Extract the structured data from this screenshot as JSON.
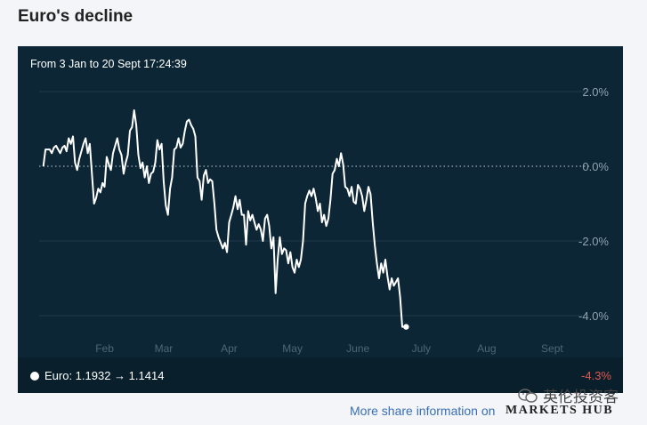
{
  "title": "Euro's decline",
  "subtitle": "From 3 Jan to 20 Sept 17:24:39",
  "legend_text": "Euro: 1.1932 → 1.1414",
  "change_text": "-4.3%",
  "share_text": "More share information on",
  "brand_text": "MARKETS HUB",
  "watermark_text": "英伦投资客",
  "colors": {
    "background": "#f3f5f8",
    "panel": "#0c2636",
    "line": "#ffffff",
    "negative": "#e0574f",
    "link": "#3a6fb3"
  },
  "chart_data": {
    "type": "line",
    "title": "Euro's decline",
    "subtitle": "From 3 Jan to 20 Sept 17:24:39",
    "xlabel": "",
    "ylabel": "",
    "ylim": [
      -5,
      2.5
    ],
    "yticks": [
      2.0,
      0.0,
      -2.0,
      -4.0
    ],
    "ytick_labels": [
      "2.0%",
      "0.0%",
      "-2.0%",
      "-4.0%"
    ],
    "reference_line": 0.0,
    "month_ticks": [
      {
        "label": "Feb",
        "day": 31
      },
      {
        "label": "Mar",
        "day": 59
      },
      {
        "label": "Apr",
        "day": 90
      },
      {
        "label": "May",
        "day": 120
      },
      {
        "label": "June",
        "day": 151
      },
      {
        "label": "July",
        "day": 181
      },
      {
        "label": "Aug",
        "day": 212
      },
      {
        "label": "Sept",
        "day": 243
      }
    ],
    "x_start_label": "3 Jan",
    "x_end_label": "20 Sept",
    "series": [
      {
        "name": "Euro",
        "points": [
          [
            2,
            0.0
          ],
          [
            3,
            0.45
          ],
          [
            5,
            0.45
          ],
          [
            6,
            0.35
          ],
          [
            7,
            0.5
          ],
          [
            8,
            0.55
          ],
          [
            9,
            0.45
          ],
          [
            10,
            0.35
          ],
          [
            11,
            0.5
          ],
          [
            12,
            0.55
          ],
          [
            13,
            0.4
          ],
          [
            14,
            0.75
          ],
          [
            15,
            0.6
          ],
          [
            16,
            0.8
          ],
          [
            17,
            0.1
          ],
          [
            18,
            -0.1
          ],
          [
            19,
            0.2
          ],
          [
            21,
            0.6
          ],
          [
            22,
            0.75
          ],
          [
            23,
            0.35
          ],
          [
            24,
            0.6
          ],
          [
            25,
            -0.2
          ],
          [
            26,
            -1.0
          ],
          [
            27,
            -0.85
          ],
          [
            28,
            -0.6
          ],
          [
            29,
            -0.7
          ],
          [
            30,
            -0.45
          ],
          [
            31,
            -0.55
          ],
          [
            32,
            0.25
          ],
          [
            33,
            0.05
          ],
          [
            34,
            -0.1
          ],
          [
            35,
            0.35
          ],
          [
            36,
            0.55
          ],
          [
            37,
            0.75
          ],
          [
            38,
            0.45
          ],
          [
            39,
            0.3
          ],
          [
            40,
            -0.2
          ],
          [
            41,
            0.1
          ],
          [
            42,
            0.3
          ],
          [
            43,
            0.95
          ],
          [
            44,
            1.05
          ],
          [
            45,
            1.5
          ],
          [
            46,
            1.1
          ],
          [
            47,
            0.3
          ],
          [
            48,
            -0.05
          ],
          [
            49,
            0.1
          ],
          [
            50,
            -0.3
          ],
          [
            51,
            0.0
          ],
          [
            52,
            -0.45
          ],
          [
            53,
            -0.2
          ],
          [
            54,
            -0.15
          ],
          [
            55,
            0.1
          ],
          [
            56,
            0.7
          ],
          [
            57,
            0.45
          ],
          [
            58,
            0.6
          ],
          [
            59,
            -0.4
          ],
          [
            60,
            -1.05
          ],
          [
            61,
            -1.3
          ],
          [
            62,
            -0.6
          ],
          [
            63,
            -0.3
          ],
          [
            64,
            0.45
          ],
          [
            65,
            0.5
          ],
          [
            66,
            0.75
          ],
          [
            67,
            0.5
          ],
          [
            68,
            0.6
          ],
          [
            69,
            0.95
          ],
          [
            70,
            1.2
          ],
          [
            71,
            1.25
          ],
          [
            72,
            1.1
          ],
          [
            73,
            1.0
          ],
          [
            74,
            0.8
          ],
          [
            75,
            -0.3
          ],
          [
            76,
            -0.4
          ],
          [
            77,
            -0.9
          ],
          [
            78,
            -0.25
          ],
          [
            79,
            -0.1
          ],
          [
            80,
            -0.45
          ],
          [
            81,
            -0.35
          ],
          [
            82,
            -0.4
          ],
          [
            83,
            -1.0
          ],
          [
            84,
            -1.7
          ],
          [
            85,
            -1.9
          ],
          [
            86,
            -2.05
          ],
          [
            87,
            -2.2
          ],
          [
            88,
            -2.05
          ],
          [
            89,
            -2.3
          ],
          [
            90,
            -1.5
          ],
          [
            91,
            -1.3
          ],
          [
            92,
            -1.1
          ],
          [
            93,
            -0.8
          ],
          [
            94,
            -1.15
          ],
          [
            95,
            -0.9
          ],
          [
            96,
            -1.3
          ],
          [
            97,
            -1.3
          ],
          [
            98,
            -2.1
          ],
          [
            99,
            -1.2
          ],
          [
            100,
            -1.45
          ],
          [
            101,
            -1.3
          ],
          [
            102,
            -1.5
          ],
          [
            103,
            -1.7
          ],
          [
            104,
            -1.55
          ],
          [
            105,
            -1.7
          ],
          [
            106,
            -2.0
          ],
          [
            107,
            -1.4
          ],
          [
            108,
            -1.3
          ],
          [
            109,
            -1.6
          ],
          [
            110,
            -2.2
          ],
          [
            111,
            -1.9
          ],
          [
            112,
            -3.4
          ],
          [
            113,
            -2.5
          ],
          [
            114,
            -1.9
          ],
          [
            115,
            -2.35
          ],
          [
            116,
            -2.2
          ],
          [
            117,
            -2.25
          ],
          [
            118,
            -2.6
          ],
          [
            119,
            -2.3
          ],
          [
            120,
            -2.7
          ],
          [
            121,
            -2.85
          ],
          [
            122,
            -2.5
          ],
          [
            123,
            -2.7
          ],
          [
            124,
            -2.5
          ],
          [
            125,
            -2.0
          ],
          [
            126,
            -1.0
          ],
          [
            127,
            -0.8
          ],
          [
            128,
            -0.65
          ],
          [
            129,
            -0.8
          ],
          [
            130,
            -0.6
          ],
          [
            131,
            -0.85
          ],
          [
            132,
            -1.2
          ],
          [
            133,
            -1.0
          ],
          [
            134,
            -1.5
          ],
          [
            135,
            -1.3
          ],
          [
            136,
            -1.6
          ],
          [
            137,
            -1.4
          ],
          [
            138,
            -0.9
          ],
          [
            139,
            -0.2
          ],
          [
            140,
            -0.1
          ],
          [
            141,
            0.2
          ],
          [
            142,
            0.0
          ],
          [
            143,
            0.35
          ],
          [
            144,
            0.05
          ],
          [
            145,
            -0.55
          ],
          [
            146,
            -0.6
          ],
          [
            147,
            -0.8
          ],
          [
            148,
            -0.55
          ],
          [
            149,
            -0.95
          ],
          [
            150,
            -1.0
          ],
          [
            151,
            -0.5
          ],
          [
            152,
            -0.6
          ],
          [
            153,
            -0.8
          ],
          [
            154,
            -1.2
          ],
          [
            155,
            -0.9
          ],
          [
            156,
            -0.55
          ],
          [
            157,
            -0.75
          ],
          [
            158,
            -1.5
          ],
          [
            159,
            -2.1
          ],
          [
            160,
            -2.6
          ],
          [
            161,
            -3.0
          ],
          [
            162,
            -2.6
          ],
          [
            163,
            -2.85
          ],
          [
            164,
            -2.5
          ],
          [
            165,
            -2.95
          ],
          [
            166,
            -3.3
          ],
          [
            167,
            -3.0
          ],
          [
            168,
            -3.2
          ],
          [
            169,
            -3.1
          ],
          [
            170,
            -3.0
          ],
          [
            171,
            -3.5
          ],
          [
            172,
            -4.3
          ],
          [
            173,
            -4.3
          ]
        ]
      }
    ],
    "end_marker": true
  }
}
